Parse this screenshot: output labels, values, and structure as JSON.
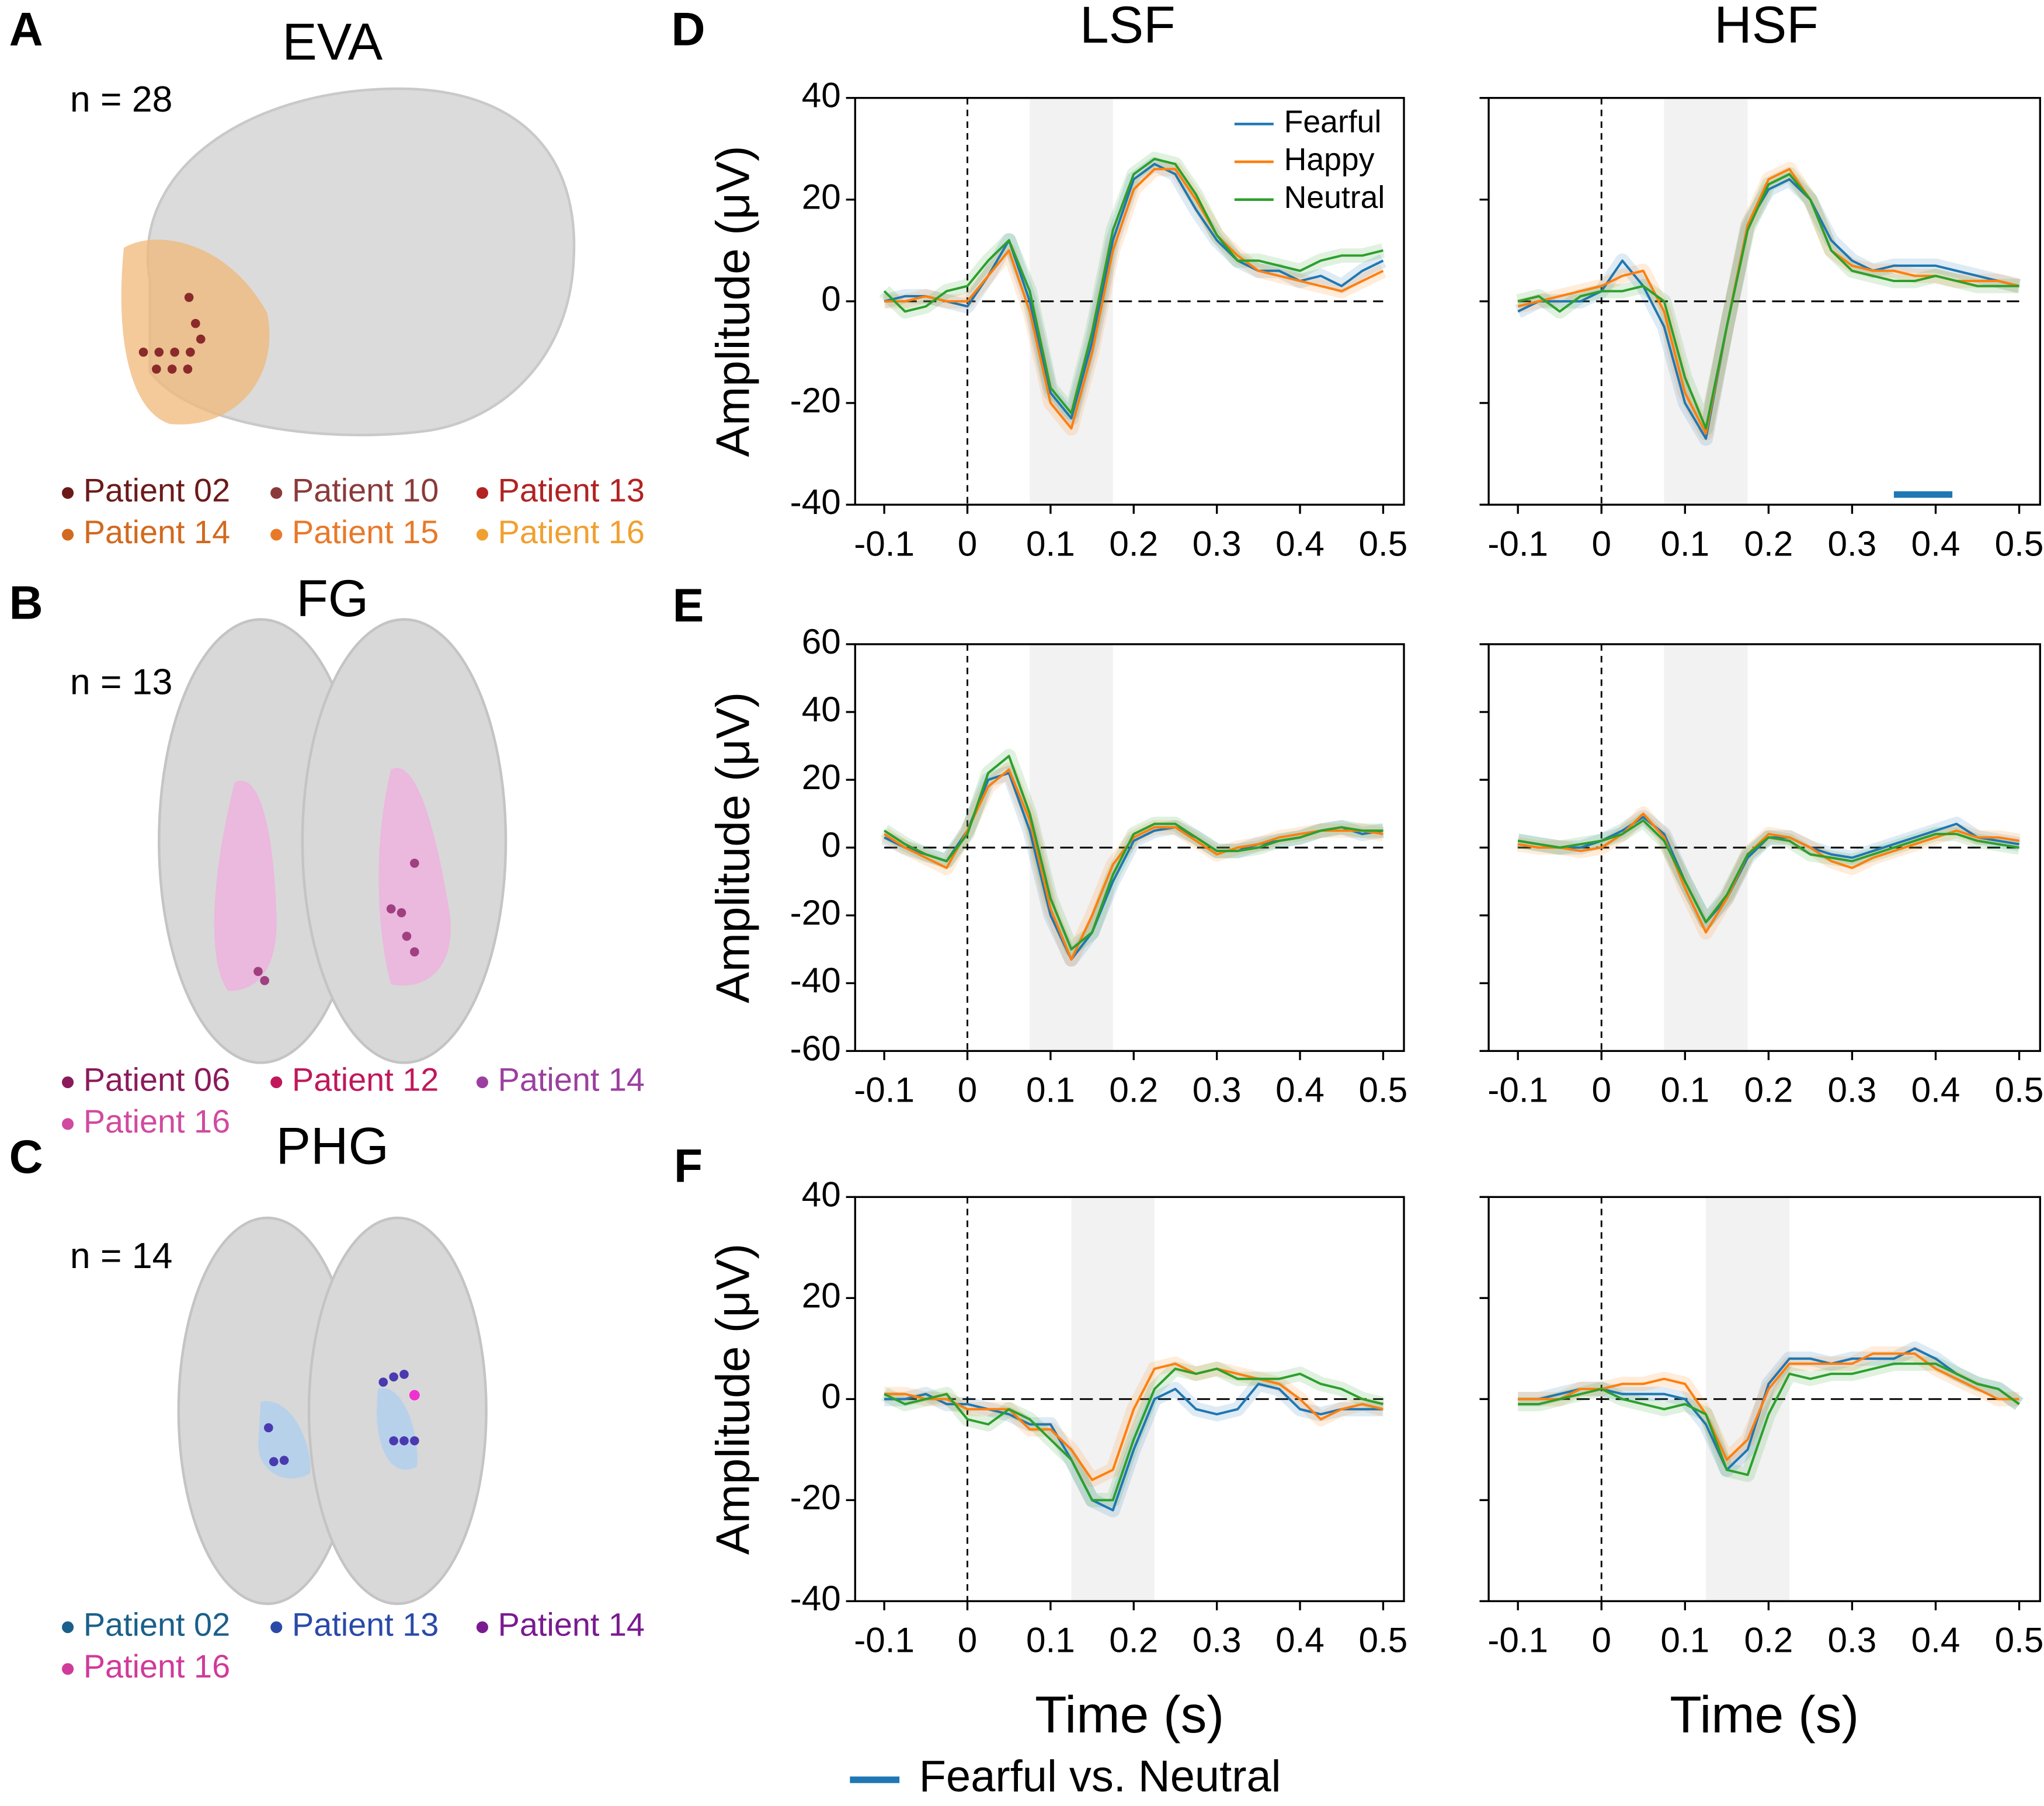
{
  "panel_labels": [
    "A",
    "B",
    "C",
    "D",
    "E",
    "F"
  ],
  "column_titles": [
    "LSF",
    "HSF"
  ],
  "brain_panels": [
    {
      "title": "EVA",
      "n_text": "n = 28",
      "patients": [
        {
          "name": "Patient 02",
          "color": "#6b1a1a"
        },
        {
          "name": "Patient 10",
          "color": "#8b3a3a"
        },
        {
          "name": "Patient 13",
          "color": "#b22222"
        },
        {
          "name": "Patient 14",
          "color": "#d2691e"
        },
        {
          "name": "Patient 15",
          "color": "#e8792a"
        },
        {
          "name": "Patient 16",
          "color": "#f0a030"
        }
      ]
    },
    {
      "title": "FG",
      "n_text": "n = 13",
      "patients": [
        {
          "name": "Patient 06",
          "color": "#8b1a5a"
        },
        {
          "name": "Patient 12",
          "color": "#c0185a"
        },
        {
          "name": "Patient 14",
          "color": "#9b3fa0"
        },
        {
          "name": "Patient 16",
          "color": "#d04aa0"
        }
      ]
    },
    {
      "title": "PHG",
      "n_text": "n = 14",
      "patients": [
        {
          "name": "Patient 02",
          "color": "#1a5f8b"
        },
        {
          "name": "Patient 13",
          "color": "#2a4aa8"
        },
        {
          "name": "Patient 14",
          "color": "#7a1a90"
        },
        {
          "name": "Patient 16",
          "color": "#d03a9a"
        }
      ]
    }
  ],
  "significance_legend": {
    "label": "Fearful vs. Neutral",
    "color": "#1f77b4"
  },
  "chart_data": [
    {
      "type": "line",
      "y_label": "Amplitude (μV)",
      "xlim": [
        -0.135,
        0.525
      ],
      "ylim": [
        -40,
        40
      ],
      "yticks": [
        -40,
        -20,
        0,
        20,
        40
      ],
      "xticks": [
        -0.1,
        0,
        0.1,
        0.2,
        0.3,
        0.4,
        0.5
      ],
      "shaded_interval": [
        0.075,
        0.175
      ],
      "legend": "upper right",
      "x": [
        -0.1,
        -0.075,
        -0.05,
        -0.025,
        0,
        0.025,
        0.05,
        0.075,
        0.1,
        0.125,
        0.15,
        0.175,
        0.2,
        0.225,
        0.25,
        0.275,
        0.3,
        0.325,
        0.35,
        0.375,
        0.4,
        0.425,
        0.45,
        0.475,
        0.5
      ],
      "series": [
        {
          "name": "Fearful",
          "color": "#1f77b4",
          "values": [
            0,
            1,
            1,
            0,
            -1,
            5,
            12,
            0,
            -18,
            -23,
            -8,
            12,
            24,
            27,
            25,
            18,
            12,
            8,
            6,
            6,
            4,
            5,
            3,
            6,
            8
          ]
        },
        {
          "name": "Happy",
          "color": "#ff7f0e",
          "values": [
            0,
            0,
            1,
            0,
            0,
            5,
            10,
            -2,
            -20,
            -25,
            -10,
            10,
            22,
            26,
            26,
            20,
            13,
            9,
            6,
            5,
            4,
            3,
            2,
            4,
            6
          ]
        },
        {
          "name": "Neutral",
          "color": "#2ca02c",
          "values": [
            2,
            -2,
            -1,
            2,
            3,
            8,
            12,
            2,
            -17,
            -22,
            -6,
            14,
            25,
            28,
            27,
            21,
            13,
            8,
            8,
            7,
            6,
            8,
            9,
            9,
            10
          ]
        }
      ]
    },
    {
      "type": "line",
      "show_ytick_labels": false,
      "xlim": [
        -0.135,
        0.525
      ],
      "ylim": [
        -40,
        40
      ],
      "yticks": [
        -40,
        -20,
        0,
        20,
        40
      ],
      "xticks": [
        -0.1,
        0,
        0.1,
        0.2,
        0.3,
        0.4,
        0.5
      ],
      "shaded_interval": [
        0.075,
        0.175
      ],
      "significance_bars": [
        {
          "x": [
            0.35,
            0.42
          ],
          "y": -38
        }
      ],
      "x": [
        -0.1,
        -0.075,
        -0.05,
        -0.025,
        0,
        0.025,
        0.05,
        0.075,
        0.1,
        0.125,
        0.15,
        0.175,
        0.2,
        0.225,
        0.25,
        0.275,
        0.3,
        0.325,
        0.35,
        0.375,
        0.4,
        0.425,
        0.45,
        0.475,
        0.5
      ],
      "series": [
        {
          "color": "#1f77b4",
          "values": [
            -2,
            0,
            0,
            0,
            2,
            8,
            3,
            -5,
            -20,
            -27,
            -5,
            15,
            22,
            24,
            20,
            12,
            8,
            6,
            7,
            7,
            7,
            6,
            5,
            4,
            3
          ]
        },
        {
          "color": "#ff7f0e",
          "values": [
            -1,
            0,
            1,
            2,
            3,
            5,
            6,
            -2,
            -18,
            -26,
            -5,
            15,
            24,
            26,
            20,
            10,
            7,
            6,
            6,
            5,
            5,
            4,
            4,
            4,
            3
          ]
        },
        {
          "color": "#2ca02c",
          "values": [
            0,
            1,
            -2,
            1,
            2,
            2,
            3,
            0,
            -15,
            -25,
            -5,
            14,
            23,
            25,
            20,
            10,
            6,
            5,
            4,
            4,
            5,
            4,
            3,
            3,
            3
          ]
        }
      ]
    },
    {
      "type": "line",
      "y_label": "Amplitude (μV)",
      "xlim": [
        -0.135,
        0.525
      ],
      "ylim": [
        -60,
        60
      ],
      "yticks": [
        -60,
        -40,
        -20,
        0,
        20,
        40,
        60
      ],
      "xticks": [
        -0.1,
        0,
        0.1,
        0.2,
        0.3,
        0.4,
        0.5
      ],
      "shaded_interval": [
        0.075,
        0.175
      ],
      "x": [
        -0.1,
        -0.075,
        -0.05,
        -0.025,
        0,
        0.025,
        0.05,
        0.075,
        0.1,
        0.125,
        0.15,
        0.175,
        0.2,
        0.225,
        0.25,
        0.275,
        0.3,
        0.325,
        0.35,
        0.375,
        0.4,
        0.425,
        0.45,
        0.475,
        0.5
      ],
      "series": [
        {
          "color": "#1f77b4",
          "values": [
            3,
            0,
            -2,
            -4,
            5,
            20,
            22,
            5,
            -20,
            -33,
            -25,
            -10,
            2,
            5,
            6,
            3,
            -1,
            -1,
            1,
            2,
            3,
            5,
            6,
            4,
            5
          ]
        },
        {
          "color": "#ff7f0e",
          "values": [
            4,
            0,
            -3,
            -6,
            5,
            18,
            23,
            8,
            -18,
            -33,
            -20,
            -5,
            3,
            6,
            6,
            2,
            -2,
            0,
            1,
            3,
            4,
            5,
            5,
            5,
            4
          ]
        },
        {
          "color": "#2ca02c",
          "values": [
            5,
            1,
            -2,
            -4,
            4,
            22,
            27,
            10,
            -15,
            -30,
            -25,
            -8,
            4,
            7,
            7,
            3,
            -1,
            -1,
            0,
            2,
            3,
            5,
            6,
            5,
            5
          ]
        }
      ]
    },
    {
      "type": "line",
      "show_ytick_labels": false,
      "xlim": [
        -0.135,
        0.525
      ],
      "ylim": [
        -60,
        60
      ],
      "yticks": [
        -60,
        -40,
        -20,
        0,
        20,
        40,
        60
      ],
      "xticks": [
        -0.1,
        0,
        0.1,
        0.2,
        0.3,
        0.4,
        0.5
      ],
      "shaded_interval": [
        0.075,
        0.175
      ],
      "x": [
        -0.1,
        -0.075,
        -0.05,
        -0.025,
        0,
        0.025,
        0.05,
        0.075,
        0.1,
        0.125,
        0.15,
        0.175,
        0.2,
        0.225,
        0.25,
        0.275,
        0.3,
        0.325,
        0.35,
        0.375,
        0.4,
        0.425,
        0.45,
        0.475,
        0.5
      ],
      "series": [
        {
          "color": "#1f77b4",
          "values": [
            2,
            1,
            0,
            0,
            2,
            5,
            9,
            4,
            -10,
            -22,
            -15,
            -3,
            3,
            3,
            0,
            -2,
            -3,
            -1,
            1,
            3,
            5,
            7,
            3,
            2,
            1
          ]
        },
        {
          "color": "#ff7f0e",
          "values": [
            1,
            0,
            0,
            -1,
            0,
            4,
            10,
            3,
            -12,
            -25,
            -15,
            -2,
            4,
            3,
            0,
            -4,
            -6,
            -3,
            -1,
            1,
            3,
            5,
            3,
            3,
            2
          ]
        },
        {
          "color": "#2ca02c",
          "values": [
            2,
            1,
            0,
            1,
            2,
            4,
            8,
            2,
            -10,
            -22,
            -14,
            -2,
            3,
            2,
            -2,
            -3,
            -4,
            -2,
            0,
            2,
            4,
            4,
            2,
            1,
            0
          ]
        }
      ]
    },
    {
      "type": "line",
      "y_label": "Amplitude (μV)",
      "x_label": "Time (s)",
      "xlim": [
        -0.135,
        0.525
      ],
      "ylim": [
        -40,
        40
      ],
      "yticks": [
        -40,
        -20,
        0,
        20,
        40
      ],
      "xticks": [
        -0.1,
        0,
        0.1,
        0.2,
        0.3,
        0.4,
        0.5
      ],
      "shaded_interval": [
        0.125,
        0.225
      ],
      "x": [
        -0.1,
        -0.075,
        -0.05,
        -0.025,
        0,
        0.025,
        0.05,
        0.075,
        0.1,
        0.125,
        0.15,
        0.175,
        0.2,
        0.225,
        0.25,
        0.275,
        0.3,
        0.325,
        0.35,
        0.375,
        0.4,
        0.425,
        0.45,
        0.475,
        0.5
      ],
      "series": [
        {
          "color": "#1f77b4",
          "values": [
            0,
            0,
            1,
            -1,
            -1,
            -2,
            -3,
            -5,
            -5,
            -12,
            -20,
            -22,
            -10,
            0,
            2,
            -2,
            -3,
            -2,
            3,
            2,
            -2,
            -3,
            -2,
            -2,
            -2
          ]
        },
        {
          "color": "#ff7f0e",
          "values": [
            1,
            1,
            0,
            0,
            -2,
            -2,
            -2,
            -6,
            -6,
            -10,
            -16,
            -14,
            -2,
            6,
            7,
            5,
            6,
            5,
            4,
            3,
            0,
            -4,
            -2,
            -1,
            -2
          ]
        },
        {
          "color": "#2ca02c",
          "values": [
            1,
            -1,
            0,
            1,
            -4,
            -5,
            -2,
            -4,
            -8,
            -12,
            -20,
            -20,
            -8,
            2,
            6,
            5,
            6,
            4,
            4,
            4,
            5,
            3,
            2,
            0,
            -1
          ]
        }
      ]
    },
    {
      "type": "line",
      "show_ytick_labels": false,
      "x_label": "Time (s)",
      "xlim": [
        -0.135,
        0.525
      ],
      "ylim": [
        -40,
        40
      ],
      "yticks": [
        -40,
        -20,
        0,
        20,
        40
      ],
      "xticks": [
        -0.1,
        0,
        0.1,
        0.2,
        0.3,
        0.4,
        0.5
      ],
      "shaded_interval": [
        0.125,
        0.225
      ],
      "x": [
        -0.1,
        -0.075,
        -0.05,
        -0.025,
        0,
        0.025,
        0.05,
        0.075,
        0.1,
        0.125,
        0.15,
        0.175,
        0.2,
        0.225,
        0.25,
        0.275,
        0.3,
        0.325,
        0.35,
        0.375,
        0.4,
        0.425,
        0.45,
        0.475,
        0.5
      ],
      "series": [
        {
          "color": "#1f77b4",
          "values": [
            0,
            0,
            1,
            2,
            2,
            1,
            1,
            1,
            0,
            -5,
            -14,
            -10,
            3,
            8,
            8,
            7,
            8,
            8,
            8,
            10,
            8,
            5,
            3,
            2,
            -1
          ]
        },
        {
          "color": "#ff7f0e",
          "values": [
            0,
            0,
            0,
            2,
            2,
            3,
            3,
            4,
            3,
            -3,
            -12,
            -8,
            2,
            7,
            7,
            7,
            7,
            9,
            9,
            9,
            6,
            4,
            2,
            0,
            0
          ]
        },
        {
          "color": "#2ca02c",
          "values": [
            -1,
            -1,
            0,
            1,
            2,
            0,
            -1,
            -2,
            -1,
            -3,
            -14,
            -15,
            -3,
            5,
            4,
            5,
            5,
            6,
            7,
            7,
            7,
            5,
            3,
            2,
            -1
          ]
        }
      ]
    }
  ]
}
